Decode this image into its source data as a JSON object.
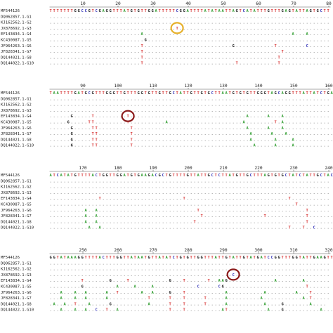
{
  "colors": {
    "A": "#2e9b2e",
    "C": "#2a2ab4",
    "G": "#111111",
    "T": "#d42a2a",
    "dot": "#333333"
  },
  "highlights": [
    {
      "block": 0,
      "row": 3,
      "col": 36,
      "color": "#e6b02a"
    },
    {
      "block": 1,
      "row": 4,
      "col": 22,
      "color": "#8b1a1a"
    },
    {
      "block": 3,
      "row": 3,
      "col": 52,
      "color": "#8b1a1a"
    }
  ],
  "blocks": [
    {
      "ruler": [
        "10",
        "20",
        "30",
        "40",
        "50",
        "60",
        "70",
        "80"
      ],
      "labels": [
        "MF544126",
        "DQ062857.1-G1",
        "KJ162562.1-G2",
        "JX878692.1-G3",
        "EF143834.1-G4",
        "KC430087.1-G5",
        "JF964263.1-G6",
        "JF828341.1-G7",
        "DQ144021.1-G8",
        "DQ144022.1-G10"
      ],
      "rows": [
        "TTTTTTTGGCCGTCGAGGTTTATGTGTTGGATTTTTCGGATTTTATATAATTAGTCATATTTGTTTGAGTATTAGTGCTT",
        "................................................................................",
        "................................................................................",
        "....................................T...........................................",
        "..........................A..........................................A...A......",
        "...........................G....................................................",
        "..........................T.........................G...........T........C......",
        "..........................T.......................................T.............",
        "..........................T......................................T..............",
        "..........................T..........................T...........T.............."
      ]
    },
    {
      "ruler": [
        "90",
        "100",
        "110",
        "120",
        "130",
        "140",
        "150",
        "160"
      ],
      "labels": [
        "MF544126",
        "DQ062857.1-G1",
        "KJ162562.1-G2",
        "JX878692.1-G3",
        "EF143834.1-G4",
        "KC430087.1-G5",
        "JF964263.1-G6",
        "JF828341.1-G7",
        "DQ144021.1-G8",
        "DQ144022.1-G10"
      ],
      "rows": [
        "TAATTTTGATGCGTTTGGGTTGTTTGGTGTTGTTGCTATTGTTGTGCTTAATGTGTGTTGGGTAGCAGGTTTATTATCTGAAT",
        "................................................................................",
        "................................................................................",
        "................................................................................",
        "......G.....T.........T.................................A.....A...A.............",
        ".....G.....TT.........T..........A.....................A........T.A.............",
        "......G.....TT.........T................................A.....A...A..............",
        "......G.....TT.........T.................................A.....A...A.............",
        "......G.....TT.........T.................................A......A....A...........",
        "......G.....TT.........T..................................A.....A....A.........."
      ]
    },
    {
      "ruler": [
        "170",
        "180",
        "190",
        "200",
        "210",
        "220",
        "230",
        "240"
      ],
      "labels": [
        "MF544126",
        "DQ062857.1-G1",
        "KJ162562.1-G2",
        "JX878692.1-G3",
        "EF143834.1-G4",
        "KC430087.1-G5",
        "JF964263.1-G6",
        "JF828341.1-G7",
        "DQ144021.1-G8",
        "DQ144022.1-G10"
      ],
      "rows": [
        "ATCATATGTTTTACTGGTTGGATGTGAAGACGCTGTTTTGTTATTGCTCTTATGTTGCTTTAGTGTGCTATCTATTGCTACT",
        "................................................................................",
        "................................................................................",
        "................................................................................",
        "..............T.......................T.............................T...........",
        "......................................................................T.........",
        "..........A..A............................T..............................T......",
        "..........A..A.............................T.................T...........T.......",
        "..........A..A...........................T...............................T.......",
        "...........A..A.....................................................T...T..C....."
      ]
    },
    {
      "ruler": [
        "250",
        "260",
        "270",
        "280",
        "290",
        "300",
        "310",
        "320"
      ],
      "labels": [
        "MF544126",
        "DQ062857.1-G1",
        "KJ162562.1-G2",
        "JX878692.1-G3",
        "EF143834.1-G4",
        "KC430087.1-G5",
        "JF964263.1-G6",
        "JF828341.1-G7",
        "DQ144021.1-G8",
        "DQ144022.1-G10"
      ],
      "rows": [
        "GGTATAAAGGTTTTACTTTGGTTATAATGTTATATCTGTGTTGGTTTATTGTATTGTATGATCCGGTTTGGTATTGAAGTTT",
        "................................................................................",
        "................................................................................",
        "....................................................C...........................",
        ".........T.......G....T...........G...T......T..AAG.............A.......A.......",
        ".........G.........A....A....A............C.....CG.......................T......",
        "...A...A..A.....A..T......A..A....G...T...........A..........A........A...T.....",
        "...A...A..A.....A...........T.....T...T.....T.....A.........A...........A.T.....",
        ".A..A..T...A.....G..........A.....T...T.....T.....A..........A....G.......A....",
        "...A...A..A..C..T..A..............T...T..........AT...........A...G..........A..."
      ]
    }
  ]
}
